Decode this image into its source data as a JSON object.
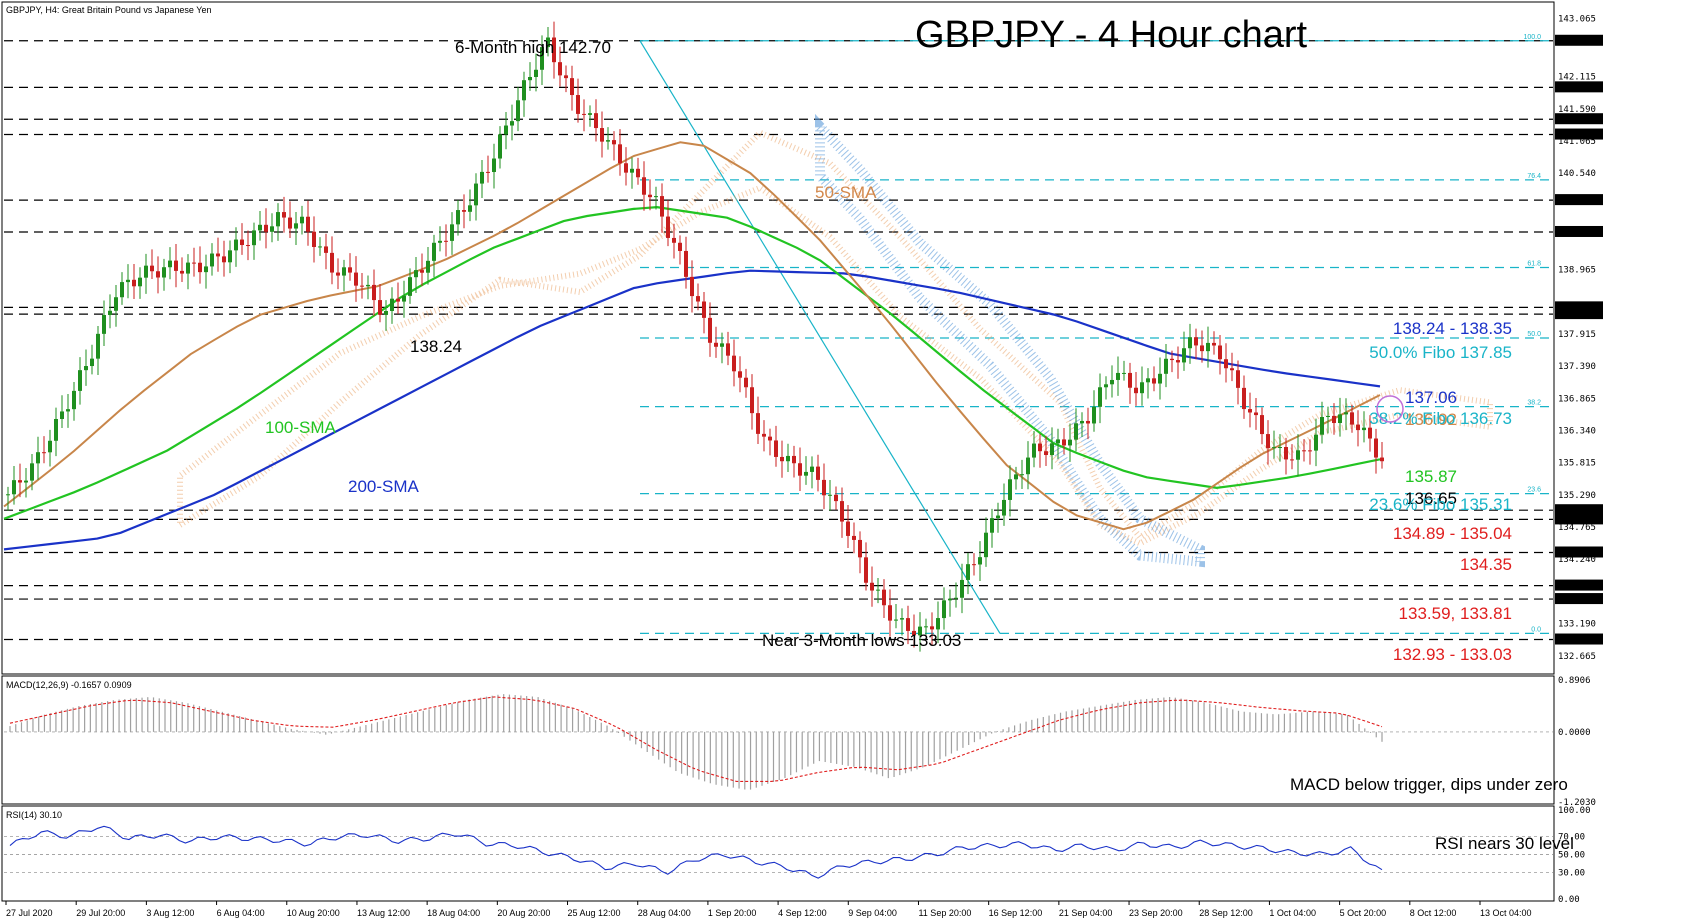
{
  "chart_data": [
    {
      "type": "candlestick",
      "symbol_header": "GBPJPY, H4:  Great Britain Pound vs Japanese Yen",
      "title": "GBPJPY - 4 Hour chart",
      "ylim": [
        132.4,
        143.3
      ],
      "x_labels": [
        "27 Jul 2020",
        "29 Jul 20:00",
        "3 Aug 12:00",
        "6 Aug 04:00",
        "10 Aug 20:00",
        "13 Aug 12:00",
        "18 Aug 04:00",
        "20 Aug 20:00",
        "25 Aug 12:00",
        "28 Aug 04:00",
        "1 Sep 20:00",
        "4 Sep 12:00",
        "9 Sep 04:00",
        "11 Sep 20:00",
        "16 Sep 12:00",
        "21 Sep 04:00",
        "23 Sep 20:00",
        "28 Sep 12:00",
        "1 Oct 04:00",
        "5 Oct 20:00",
        "8 Oct 12:00",
        "13 Oct 04:00"
      ],
      "y_tick_labels": [
        "143.065",
        "142.700",
        "142.115",
        "141.940",
        "141.590",
        "141.420",
        "141.170",
        "141.065",
        "140.540",
        "140.100",
        "139.580",
        "138.965",
        "138.350",
        "138.240",
        "137.915",
        "137.390",
        "136.865",
        "136.340",
        "135.815",
        "135.290",
        "135.040",
        "134.890",
        "134.765",
        "134.350",
        "134.240",
        "133.810",
        "133.590",
        "133.190",
        "132.930",
        "132.665"
      ],
      "price_series": [
        135.3,
        135.8,
        136.6,
        137.5,
        138.6,
        138.9,
        139.0,
        139.0,
        139.2,
        139.5,
        139.8,
        139.7,
        139.0,
        138.8,
        138.24,
        138.8,
        139.4,
        140.0,
        140.8,
        141.8,
        142.7,
        141.7,
        141.2,
        140.6,
        140.1,
        139.1,
        137.9,
        137.4,
        136.2,
        135.8,
        135.6,
        134.9,
        133.8,
        133.2,
        133.03,
        133.6,
        134.3,
        135.3,
        136.0,
        136.1,
        136.5,
        137.3,
        137.0,
        137.4,
        137.8,
        137.6,
        136.7,
        136.0,
        135.9,
        136.6,
        136.5,
        135.87
      ],
      "sma_50": [
        135.1,
        135.9,
        136.8,
        137.6,
        138.2,
        138.5,
        138.7,
        139.1,
        139.6,
        140.2,
        140.8,
        141.1,
        140.5,
        139.5,
        138.3,
        137.0,
        135.8,
        135.0,
        134.7,
        135.2,
        135.9,
        136.4,
        136.92
      ],
      "sma_100": [
        134.9,
        135.4,
        136.0,
        136.8,
        137.7,
        138.6,
        139.3,
        139.8,
        140.0,
        139.8,
        139.2,
        138.2,
        137.1,
        136.1,
        135.6,
        135.4,
        135.6,
        135.87
      ],
      "sma_200": [
        134.4,
        134.6,
        135.3,
        136.2,
        137.1,
        138.0,
        138.7,
        138.95,
        138.9,
        138.6,
        138.2,
        137.6,
        137.3,
        137.06
      ],
      "fibonacci": [
        {
          "label": "100.0",
          "value": 142.7
        },
        {
          "label": "76.4",
          "value": 140.43
        },
        {
          "label": "61.8",
          "value": 139.0
        },
        {
          "label": "50.0",
          "value": 137.85
        },
        {
          "label": "38.2",
          "value": 136.73
        },
        {
          "label": "23.6",
          "value": 135.31
        },
        {
          "label": "0.0",
          "value": 133.03
        }
      ],
      "horizontal_levels": [
        142.7,
        141.94,
        141.42,
        141.17,
        140.1,
        139.58,
        138.35,
        138.24,
        135.04,
        134.89,
        134.35,
        133.81,
        133.59,
        132.93
      ],
      "annotations": [
        {
          "text": "6-Month high 142.70",
          "color": "#000000"
        },
        {
          "text": "50-SMA",
          "color": "#d2874a"
        },
        {
          "text": "100-SMA",
          "color": "#22c422"
        },
        {
          "text": "200-SMA",
          "color": "#1a32c8"
        },
        {
          "text": "138.24",
          "color": "#000000"
        },
        {
          "text": "Near 3-Month lows 133.03",
          "color": "#000000"
        },
        {
          "text": "138.24 - 138.35",
          "color": "#1a32c8"
        },
        {
          "text": "50.0% Fibo 137.85",
          "color": "#19b4c8"
        },
        {
          "text": "137.06",
          "color": "#1a32c8"
        },
        {
          "text": "136.92",
          "color": "#d2874a"
        },
        {
          "text": "38.2% Fibo 136.73",
          "color": "#19b4c8"
        },
        {
          "text": "135.87",
          "color": "#22c422"
        },
        {
          "text": "136.65",
          "color": "#000000"
        },
        {
          "text": "23.6% Fibo 135.31",
          "color": "#19b4c8"
        },
        {
          "text": "134.89 - 135.04",
          "color": "#e01e1e"
        },
        {
          "text": "134.35",
          "color": "#e01e1e"
        },
        {
          "text": "133.59, 133.81",
          "color": "#e01e1e"
        },
        {
          "text": "132.93 - 133.03",
          "color": "#e01e1e"
        }
      ]
    },
    {
      "type": "bar",
      "name": "MACD(12,26,9) -0.1657 0.0909",
      "y_tick_labels": [
        "0.8906",
        "0.0000",
        "-1.2030"
      ],
      "ylim": [
        -1.203,
        0.8906
      ],
      "histogram": [
        0.1,
        0.3,
        0.45,
        0.55,
        0.6,
        0.5,
        0.35,
        0.2,
        0.05,
        -0.05,
        0.1,
        0.25,
        0.4,
        0.55,
        0.65,
        0.6,
        0.4,
        0.1,
        -0.3,
        -0.7,
        -0.9,
        -1.0,
        -0.8,
        -0.5,
        -0.6,
        -0.8,
        -0.6,
        -0.3,
        0.0,
        0.2,
        0.35,
        0.45,
        0.55,
        0.6,
        0.5,
        0.35,
        0.3,
        0.35,
        0.3,
        -0.17
      ],
      "signal": [
        0.15,
        0.3,
        0.45,
        0.55,
        0.5,
        0.35,
        0.2,
        0.1,
        0.08,
        0.2,
        0.35,
        0.5,
        0.6,
        0.55,
        0.4,
        0.1,
        -0.3,
        -0.65,
        -0.85,
        -0.85,
        -0.7,
        -0.6,
        -0.65,
        -0.55,
        -0.3,
        -0.05,
        0.2,
        0.38,
        0.5,
        0.55,
        0.5,
        0.42,
        0.36,
        0.32,
        0.09
      ],
      "annotation": "MACD below trigger, dips under zero"
    },
    {
      "type": "line",
      "name": "RSI(14) 30.10",
      "y_tick_labels": [
        "100.00",
        "70.00",
        "50.00",
        "30.00",
        "0.00"
      ],
      "ylim": [
        0,
        100
      ],
      "values": [
        60,
        75,
        70,
        82,
        68,
        72,
        65,
        70,
        68,
        66,
        62,
        70,
        72,
        65,
        68,
        74,
        62,
        60,
        52,
        45,
        35,
        40,
        30,
        45,
        50,
        42,
        36,
        25,
        38,
        42,
        45,
        50,
        58,
        60,
        62,
        55,
        60,
        55,
        62,
        58,
        64,
        60,
        57,
        52,
        50,
        56,
        30.1
      ],
      "annotation": "RSI nears 30 level"
    }
  ]
}
